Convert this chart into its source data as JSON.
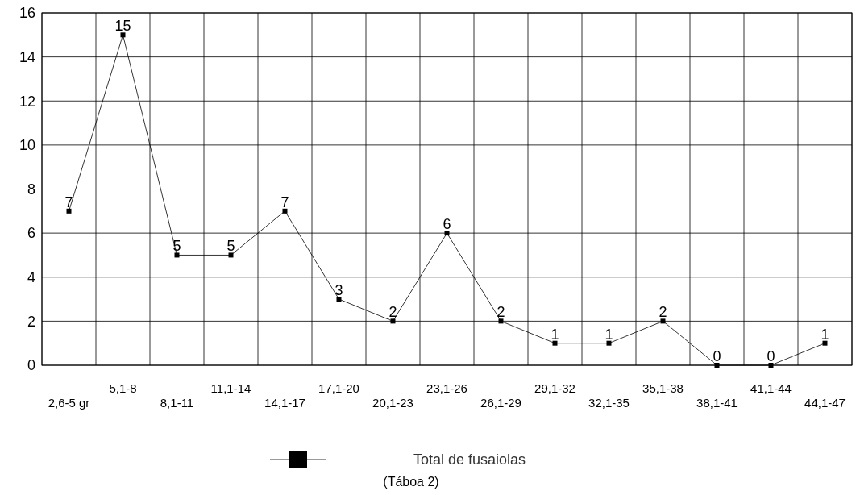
{
  "chart_data": {
    "type": "line",
    "categories": [
      "2,6-5 gr",
      "5,1-8",
      "8,1-11",
      "11,1-14",
      "14,1-17",
      "17,1-20",
      "20,1-23",
      "23,1-26",
      "26,1-29",
      "29,1-32",
      "32,1-35",
      "35,1-38",
      "38,1-41",
      "41,1-44",
      "44,1-47"
    ],
    "series": [
      {
        "name": "Total de fusaiolas",
        "color": "#000000",
        "values": [
          7,
          15,
          5,
          5,
          7,
          3,
          2,
          6,
          2,
          1,
          1,
          2,
          0,
          0,
          1
        ]
      }
    ],
    "ylim": [
      0,
      16
    ],
    "yticks": [
      0,
      2,
      4,
      6,
      8,
      10,
      12,
      14,
      16
    ],
    "grid": true,
    "legend": "bottom",
    "marker": "square",
    "line_style": "solid",
    "data_labels": true,
    "annotations": [
      "(Táboa 2)"
    ]
  }
}
